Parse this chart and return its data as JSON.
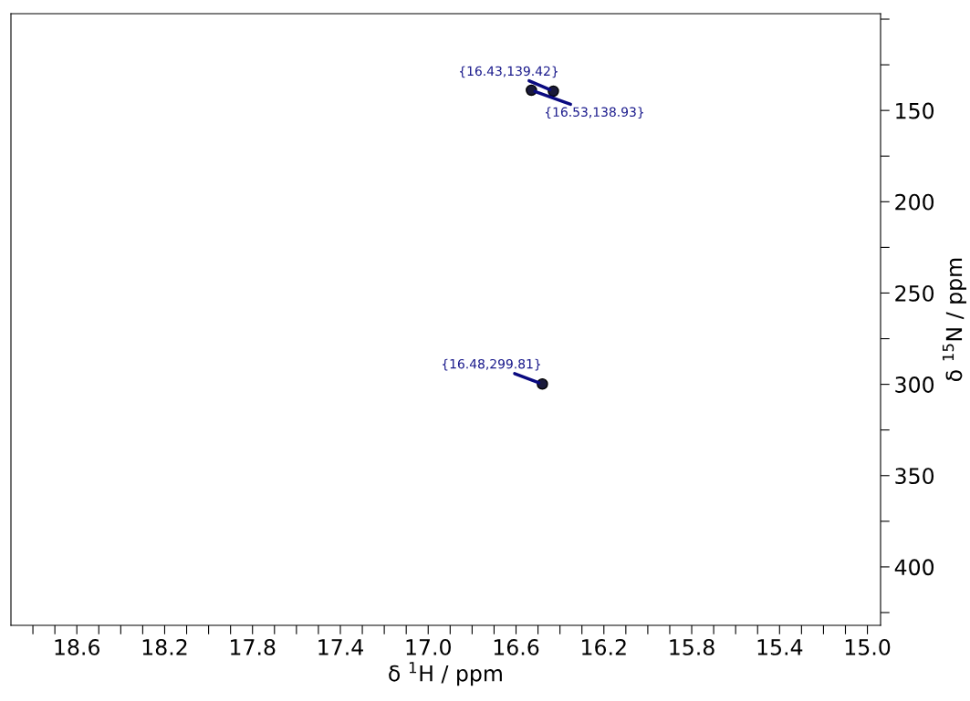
{
  "chart_data": {
    "type": "scatter",
    "xlabel": "δ $^{1}$H / ppm",
    "ylabel": "δ $^{15}$N / ppm",
    "x": [
      16.43,
      16.53,
      16.48
    ],
    "series": [
      {
        "color": "#1a1a3a",
        "values": [
          139.42,
          138.93,
          299.81
        ]
      }
    ],
    "marker": "circle",
    "grid": false,
    "legend": false,
    "xlim": [
      18.9,
      14.94
    ],
    "ylim": [
      432,
      97
    ],
    "xticks": [
      {
        "value": 18.8,
        "label": null
      },
      {
        "value": 18.7,
        "label": null
      },
      18.6,
      {
        "value": 18.5,
        "label": null
      },
      {
        "value": 18.4,
        "label": null
      },
      {
        "value": 18.3,
        "label": null
      },
      18.2,
      {
        "value": 18.1,
        "label": null
      },
      {
        "value": 18.0,
        "label": null
      },
      {
        "value": 17.9,
        "label": null
      },
      17.8,
      {
        "value": 17.7,
        "label": null
      },
      {
        "value": 17.6,
        "label": null
      },
      {
        "value": 17.5,
        "label": null
      },
      17.4,
      {
        "value": 17.3,
        "label": null
      },
      {
        "value": 17.2,
        "label": null
      },
      {
        "value": 17.1,
        "label": null
      },
      {
        "value": 17.0,
        "label": "17.0"
      },
      {
        "value": 16.9,
        "label": null
      },
      {
        "value": 16.8,
        "label": null
      },
      {
        "value": 16.7,
        "label": null
      },
      16.6,
      {
        "value": 16.5,
        "label": null
      },
      {
        "value": 16.4,
        "label": null
      },
      {
        "value": 16.3,
        "label": null
      },
      16.2,
      {
        "value": 16.1,
        "label": null
      },
      {
        "value": 16.0,
        "label": null
      },
      {
        "value": 15.9,
        "label": null
      },
      15.8,
      {
        "value": 15.7,
        "label": null
      },
      {
        "value": 15.6,
        "label": null
      },
      {
        "value": 15.5,
        "label": null
      },
      15.4,
      {
        "value": 15.3,
        "label": null
      },
      {
        "value": 15.2,
        "label": null
      },
      {
        "value": 15.1,
        "label": null
      },
      {
        "value": 15.0,
        "label": "15.0"
      }
    ],
    "yticks": [
      {
        "value": 100,
        "label": null
      },
      {
        "value": 125,
        "label": null
      },
      150,
      {
        "value": 175,
        "label": null
      },
      200,
      {
        "value": 225,
        "label": null
      },
      250,
      {
        "value": 275,
        "label": null
      },
      300,
      {
        "value": 325,
        "label": null
      },
      350,
      {
        "value": 375,
        "label": null
      },
      400,
      {
        "value": 425,
        "label": null
      }
    ],
    "annotations": [
      {
        "text": "{16.43,139.42}",
        "x": 16.43,
        "y": 139.42
      },
      {
        "text": "{16.53,138.93}",
        "x": 16.53,
        "y": 138.93
      },
      {
        "text": "{16.48,299.81}",
        "x": 16.48,
        "y": 299.81
      }
    ]
  }
}
